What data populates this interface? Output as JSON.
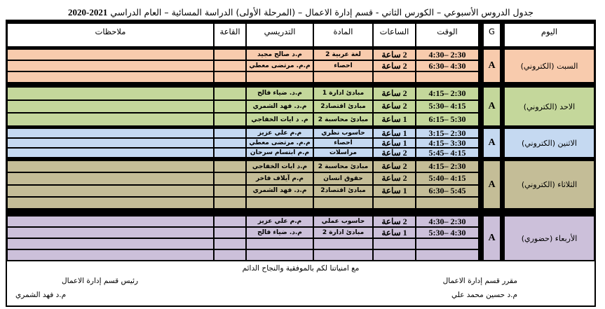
{
  "title": {
    "text": "جدول الدروس الأسبوعي – الكورس الثاني - قسم إدارة الاعمال – (المرحلة الأولى) الدراسة المسائية – العام الدراسي ",
    "year": "2021-2020"
  },
  "headers": {
    "day": "اليوم",
    "g": "G",
    "time": "الوقت",
    "hours": "الساعات",
    "subject": "المادة",
    "instructor": "التدريسي",
    "hall": "القاعة",
    "notes": "ملاحظات"
  },
  "days": [
    {
      "name": "السبت (الكتروني)",
      "group": "A",
      "color": "#f8cbad",
      "rows": [
        {
          "time": "2:30 –4:30",
          "hours": "2 ساعة",
          "subject": "لغة عربية 2",
          "instructor": "م.د صالح مجيد"
        },
        {
          "time": "4:30 –6:30",
          "hours": "2 ساعة",
          "subject": "احصاء",
          "instructor": "م.م. مرتضى معطي"
        },
        {
          "time": "",
          "hours": "",
          "subject": "",
          "instructor": ""
        }
      ]
    },
    {
      "name": "الاحد (الكتروني)",
      "group": "A",
      "color": "#c4d79b",
      "rows": [
        {
          "time": "2:30 –4:15",
          "hours": "2 ساعة",
          "subject": "مبادئ ادارة 1",
          "instructor": "م.د. ضياء فالح"
        },
        {
          "time": "4:15 –5:30",
          "hours": "2 ساعة",
          "subject": "مبادئ اقتصاد2",
          "instructor": "م.د. فهد الشمري"
        },
        {
          "time": "5:30 –6:15",
          "hours": "1 ساعة",
          "subject": "مبادئ محاسبة 2",
          "instructor": "م. د ايات الخفاجي"
        }
      ]
    },
    {
      "name": "الاثنين (الكتروني)",
      "group": "A",
      "color": "#c5d9f1",
      "rows": [
        {
          "time": "2:30 –3:15",
          "hours": "1 ساعة",
          "subject": "حاسوب نظري",
          "instructor": "م.م علي عزيز"
        },
        {
          "time": "3:30 –4:15",
          "hours": "1 ساعة",
          "subject": "احصاء",
          "instructor": "م.م. مرتضى معطي"
        },
        {
          "time": "4:15 –5:45",
          "hours": "2 ساعة",
          "subject": "مراسلات",
          "instructor": "م.م ابتسام سرحان"
        }
      ]
    },
    {
      "name": "الثلاثاء (الكتروني)",
      "group": "A",
      "color": "#c4bd97",
      "rows": [
        {
          "time": "2:30 –4:15",
          "hours": "2 ساعة",
          "subject": "مبادئ محاسبة 2",
          "instructor": "م.د ايات الخفاجي"
        },
        {
          "time": "4:15 –5:40",
          "hours": "2 ساعة",
          "subject": "حقوق انسان",
          "instructor": "م.م آيلاف فاخر"
        },
        {
          "time": "5:45 –6:30",
          "hours": "1 ساعة",
          "subject": "مبادئ اقتصاد2",
          "instructor": "م.د. فهد الشمري"
        },
        {
          "time": "",
          "hours": "",
          "subject": "",
          "instructor": ""
        }
      ]
    },
    {
      "name": "الأربعاء (حضوري)",
      "group": "A",
      "color": "#ccc0da",
      "rows": [
        {
          "time": "2:30 –4:30",
          "hours": "2 ساعة",
          "subject": "حاسوب عملي",
          "instructor": "م.م علي عزيز"
        },
        {
          "time": "4:30 –5:30",
          "hours": "1 ساعة",
          "subject": "مبادئ ادارة 2",
          "instructor": "م.د. ضياء فالح"
        },
        {
          "time": "",
          "hours": "",
          "subject": "",
          "instructor": ""
        },
        {
          "time": "",
          "hours": "",
          "subject": "",
          "instructor": ""
        }
      ]
    }
  ],
  "footer": {
    "wish": "مع امنياتنا لكم بالموفقية والنجاح الدائم",
    "head_title": "رئيس قسم إدارة الاعمال",
    "head_name": "م.د فهد الشمري",
    "rapporteur_title": "مقرر قسم إدارة الاعمال",
    "rapporteur_name": "م.د حسين محمد علي"
  }
}
